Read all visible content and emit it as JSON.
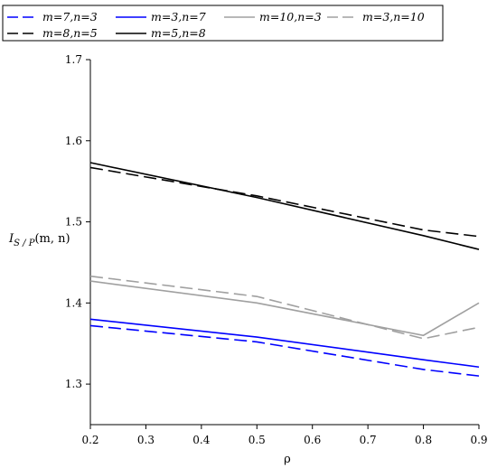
{
  "chart_data": {
    "type": "line",
    "xlabel": "ρ",
    "ylabel_main": "I",
    "ylabel_sub": "S / P",
    "ylabel_args": "(m, n)",
    "xlim": [
      0.2,
      0.9
    ],
    "ylim": [
      1.25,
      1.7
    ],
    "xticks": [
      "0.2",
      "0.3",
      "0.4",
      "0.5",
      "0.6",
      "0.7",
      "0.8",
      "0.9"
    ],
    "yticks": [
      "1.3",
      "1.4",
      "1.5",
      "1.6",
      "1.7"
    ],
    "grid": false,
    "legend_position": "top",
    "series": [
      {
        "name": "m=7,n=3",
        "color": "#0000ff",
        "dash": "dashed",
        "x": [
          0.2,
          0.5,
          0.8,
          0.9
        ],
        "y": [
          1.372,
          1.352,
          1.318,
          1.31
        ]
      },
      {
        "name": "m=3,n=7",
        "color": "#0000ff",
        "dash": "solid",
        "x": [
          0.2,
          0.5,
          0.8,
          0.9
        ],
        "y": [
          1.38,
          1.358,
          1.33,
          1.321
        ]
      },
      {
        "name": "m=10,n=3",
        "color": "#a0a0a0",
        "dash": "solid",
        "x": [
          0.2,
          0.5,
          0.8,
          0.9
        ],
        "y": [
          1.427,
          1.4,
          1.36,
          1.4
        ]
      },
      {
        "name": "m=3,n=10",
        "color": "#a0a0a0",
        "dash": "dashed",
        "x": [
          0.2,
          0.5,
          0.8,
          0.9
        ],
        "y": [
          1.433,
          1.408,
          1.356,
          1.37
        ]
      },
      {
        "name": "m=8,n=5",
        "color": "#000000",
        "dash": "dashed",
        "x": [
          0.2,
          0.5,
          0.8,
          0.9
        ],
        "y": [
          1.567,
          1.532,
          1.49,
          1.482
        ]
      },
      {
        "name": "m=5,n=8",
        "color": "#000000",
        "dash": "solid",
        "x": [
          0.2,
          0.5,
          0.8,
          0.9
        ],
        "y": [
          1.573,
          1.53,
          1.483,
          1.466
        ]
      }
    ]
  }
}
